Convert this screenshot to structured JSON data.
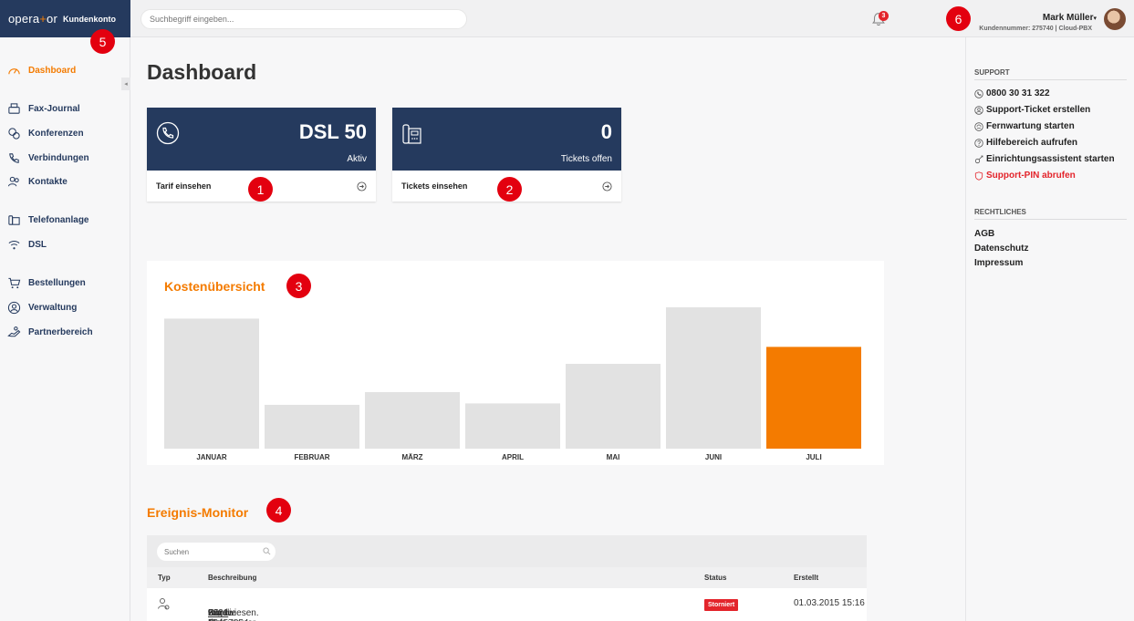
{
  "brand": {
    "logo_left": "opera",
    "logo_plus": "+",
    "logo_right": "or",
    "sub": "Kundenkonto"
  },
  "topbar": {
    "search_placeholder": "Suchbegriff eingeben...",
    "notifications_count": "3",
    "user_name": "Mark Müller",
    "user_caret": "▾",
    "user_meta": "Kundennummer: 275740 | Cloud-PBX"
  },
  "sidebar": {
    "collapse_glyph": "◂",
    "items": [
      {
        "label": "Dashboard"
      },
      {
        "label": "Fax-Journal"
      },
      {
        "label": "Konferenzen"
      },
      {
        "label": "Verbindungen"
      },
      {
        "label": "Kontakte"
      },
      {
        "label": "Telefonanlage"
      },
      {
        "label": "DSL"
      },
      {
        "label": "Bestellungen"
      },
      {
        "label": "Verwaltung"
      },
      {
        "label": "Partnerbereich"
      }
    ]
  },
  "main": {
    "title": "Dashboard",
    "cards": [
      {
        "value": "DSL 50",
        "caption": "Aktiv",
        "link": "Tarif einsehen"
      },
      {
        "value": "0",
        "caption": "Tickets offen",
        "link": "Tickets einsehen"
      }
    ],
    "cost_title": "Kostenübersicht",
    "events_title": "Ereignis-Monitor",
    "events_search_placeholder": "Suchen",
    "events_columns": [
      "Typ",
      "Beschreibung",
      "Status",
      "Erstellt"
    ],
    "events_rows": [
      {
        "desc_pre": "Für die Rufnummer ",
        "number": "0221 16457854",
        "desc_mid": " wurde dem Gerät ",
        "device": "Büro Max",
        "desc_post": " zugewiesen.",
        "status": "Storniert",
        "created": "01.03.2015 15:16"
      }
    ]
  },
  "markers": [
    "1",
    "2",
    "3",
    "4",
    "5",
    "6"
  ],
  "right": {
    "support_heading": "SUPPORT",
    "support_links": [
      {
        "label": "0800 30 31 322",
        "icon": "phone-icon"
      },
      {
        "label": "Support-Ticket erstellen",
        "icon": "user-circle-icon"
      },
      {
        "label": "Fernwartung starten",
        "icon": "remote-icon"
      },
      {
        "label": "Hilfebereich aufrufen",
        "icon": "help-icon"
      },
      {
        "label": "Einrichtungsassistent starten",
        "icon": "wizard-icon"
      },
      {
        "label": "Support-PIN abrufen",
        "icon": "shield-icon"
      }
    ],
    "legal_heading": "RECHTLICHES",
    "legal_links": [
      {
        "label": "AGB"
      },
      {
        "label": "Datenschutz"
      },
      {
        "label": "Impressum"
      }
    ]
  },
  "colors": {
    "accent": "#f47b00",
    "navy": "#253a5e",
    "bar": "#e2e2e2",
    "alert": "#e3242b"
  },
  "chart_data": {
    "type": "bar",
    "categories": [
      "JANUAR",
      "FEBRUAR",
      "MÄRZ",
      "APRIL",
      "MAI",
      "JUNI",
      "JULI"
    ],
    "values": [
      92,
      31,
      40,
      32,
      60,
      100,
      72
    ],
    "highlight_index": 6,
    "title": "Kostenübersicht",
    "xlabel": "",
    "ylabel": "",
    "ylim": [
      0,
      100
    ],
    "grid": false,
    "legend": "none"
  }
}
